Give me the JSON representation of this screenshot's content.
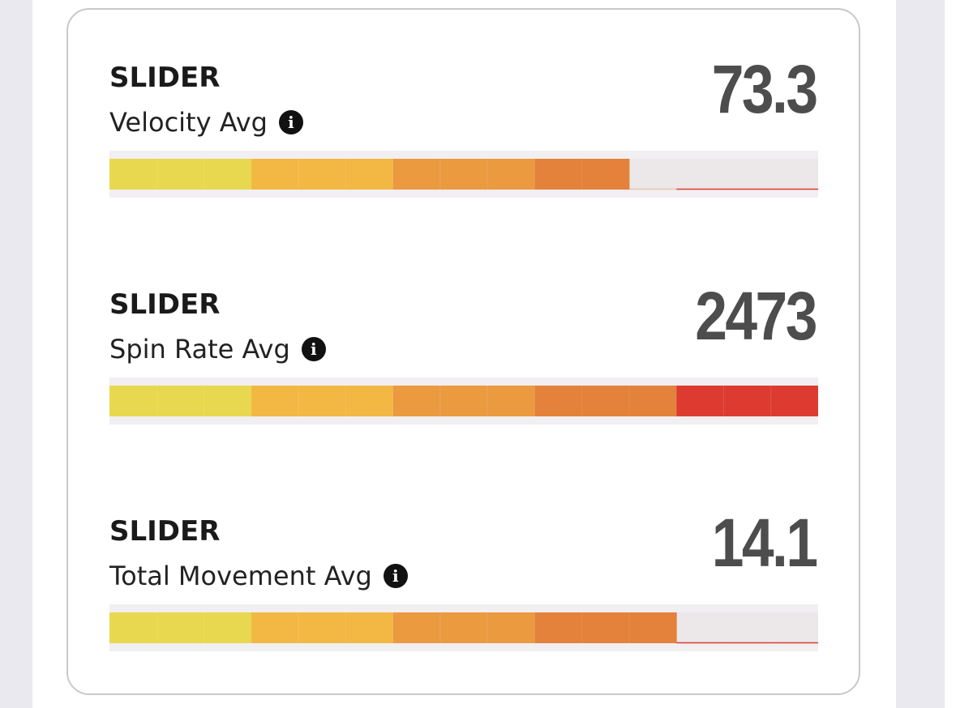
{
  "cards": [
    {
      "pitch": "SLIDER",
      "metric": "Velocity Avg",
      "value": 73.3,
      "filled_segments": 11
    },
    {
      "pitch": "SLIDER",
      "metric": "Spin Rate Avg",
      "value": 2473,
      "filled_segments": 15
    },
    {
      "pitch": "SLIDER",
      "metric": "Total Movement Avg",
      "value": 14.1,
      "filled_segments": 12
    }
  ],
  "segments": 15,
  "segment_colors": [
    "#e8d84f",
    "#e8d84f",
    "#e8d84f",
    "#f2b843",
    "#f2b843",
    "#f2b843",
    "#eb9a40",
    "#eb9a40",
    "#eb9a40",
    "#e4813a",
    "#e4813a",
    "#e4813a",
    "#dd3b2f",
    "#dd3b2f",
    "#dd3b2f"
  ]
}
